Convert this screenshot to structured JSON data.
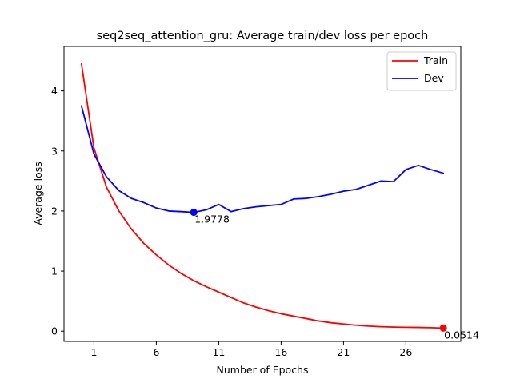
{
  "chart_data": {
    "type": "line",
    "title": "seq2seq_attention_gru: Average train/dev loss per epoch",
    "xlabel": "Number of Epochs",
    "ylabel": "Average loss",
    "xlim": [
      -1.4,
      30.4
    ],
    "ylim": [
      -0.17,
      4.74
    ],
    "x_ticks": [
      1,
      6,
      11,
      16,
      21,
      26
    ],
    "y_ticks": [
      0,
      1,
      2,
      3,
      4
    ],
    "x_tick_labels": [
      "1",
      "6",
      "11",
      "16",
      "21",
      "26"
    ],
    "y_tick_labels": [
      "0",
      "1",
      "2",
      "3",
      "4"
    ],
    "grid": false,
    "legend_position": "top-right",
    "x": [
      0,
      1,
      2,
      3,
      4,
      5,
      6,
      7,
      8,
      9,
      10,
      11,
      12,
      13,
      14,
      15,
      16,
      17,
      18,
      19,
      20,
      21,
      22,
      23,
      24,
      25,
      26,
      27,
      28,
      29
    ],
    "series": [
      {
        "name": "Train",
        "color": "#ff0000",
        "values": [
          4.45,
          3.05,
          2.4,
          2.0,
          1.7,
          1.46,
          1.27,
          1.1,
          0.96,
          0.84,
          0.74,
          0.65,
          0.56,
          0.47,
          0.4,
          0.34,
          0.29,
          0.25,
          0.21,
          0.17,
          0.14,
          0.12,
          0.1,
          0.085,
          0.075,
          0.068,
          0.065,
          0.062,
          0.058,
          0.0514
        ]
      },
      {
        "name": "Dev",
        "color": "#0000ff",
        "values": [
          3.75,
          2.95,
          2.57,
          2.34,
          2.21,
          2.14,
          2.05,
          2.0,
          1.99,
          1.9778,
          2.02,
          2.11,
          1.99,
          2.04,
          2.07,
          2.09,
          2.11,
          2.2,
          2.21,
          2.24,
          2.28,
          2.33,
          2.36,
          2.43,
          2.5,
          2.49,
          2.69,
          2.76,
          2.69,
          2.63
        ]
      }
    ],
    "annotations": [
      {
        "series": "Dev",
        "x": 9,
        "y": 1.9778,
        "label": "1.9778",
        "color": "#0000ff"
      },
      {
        "series": "Train",
        "x": 29,
        "y": 0.0514,
        "label": "0.0514",
        "color": "#ff0000"
      }
    ]
  }
}
